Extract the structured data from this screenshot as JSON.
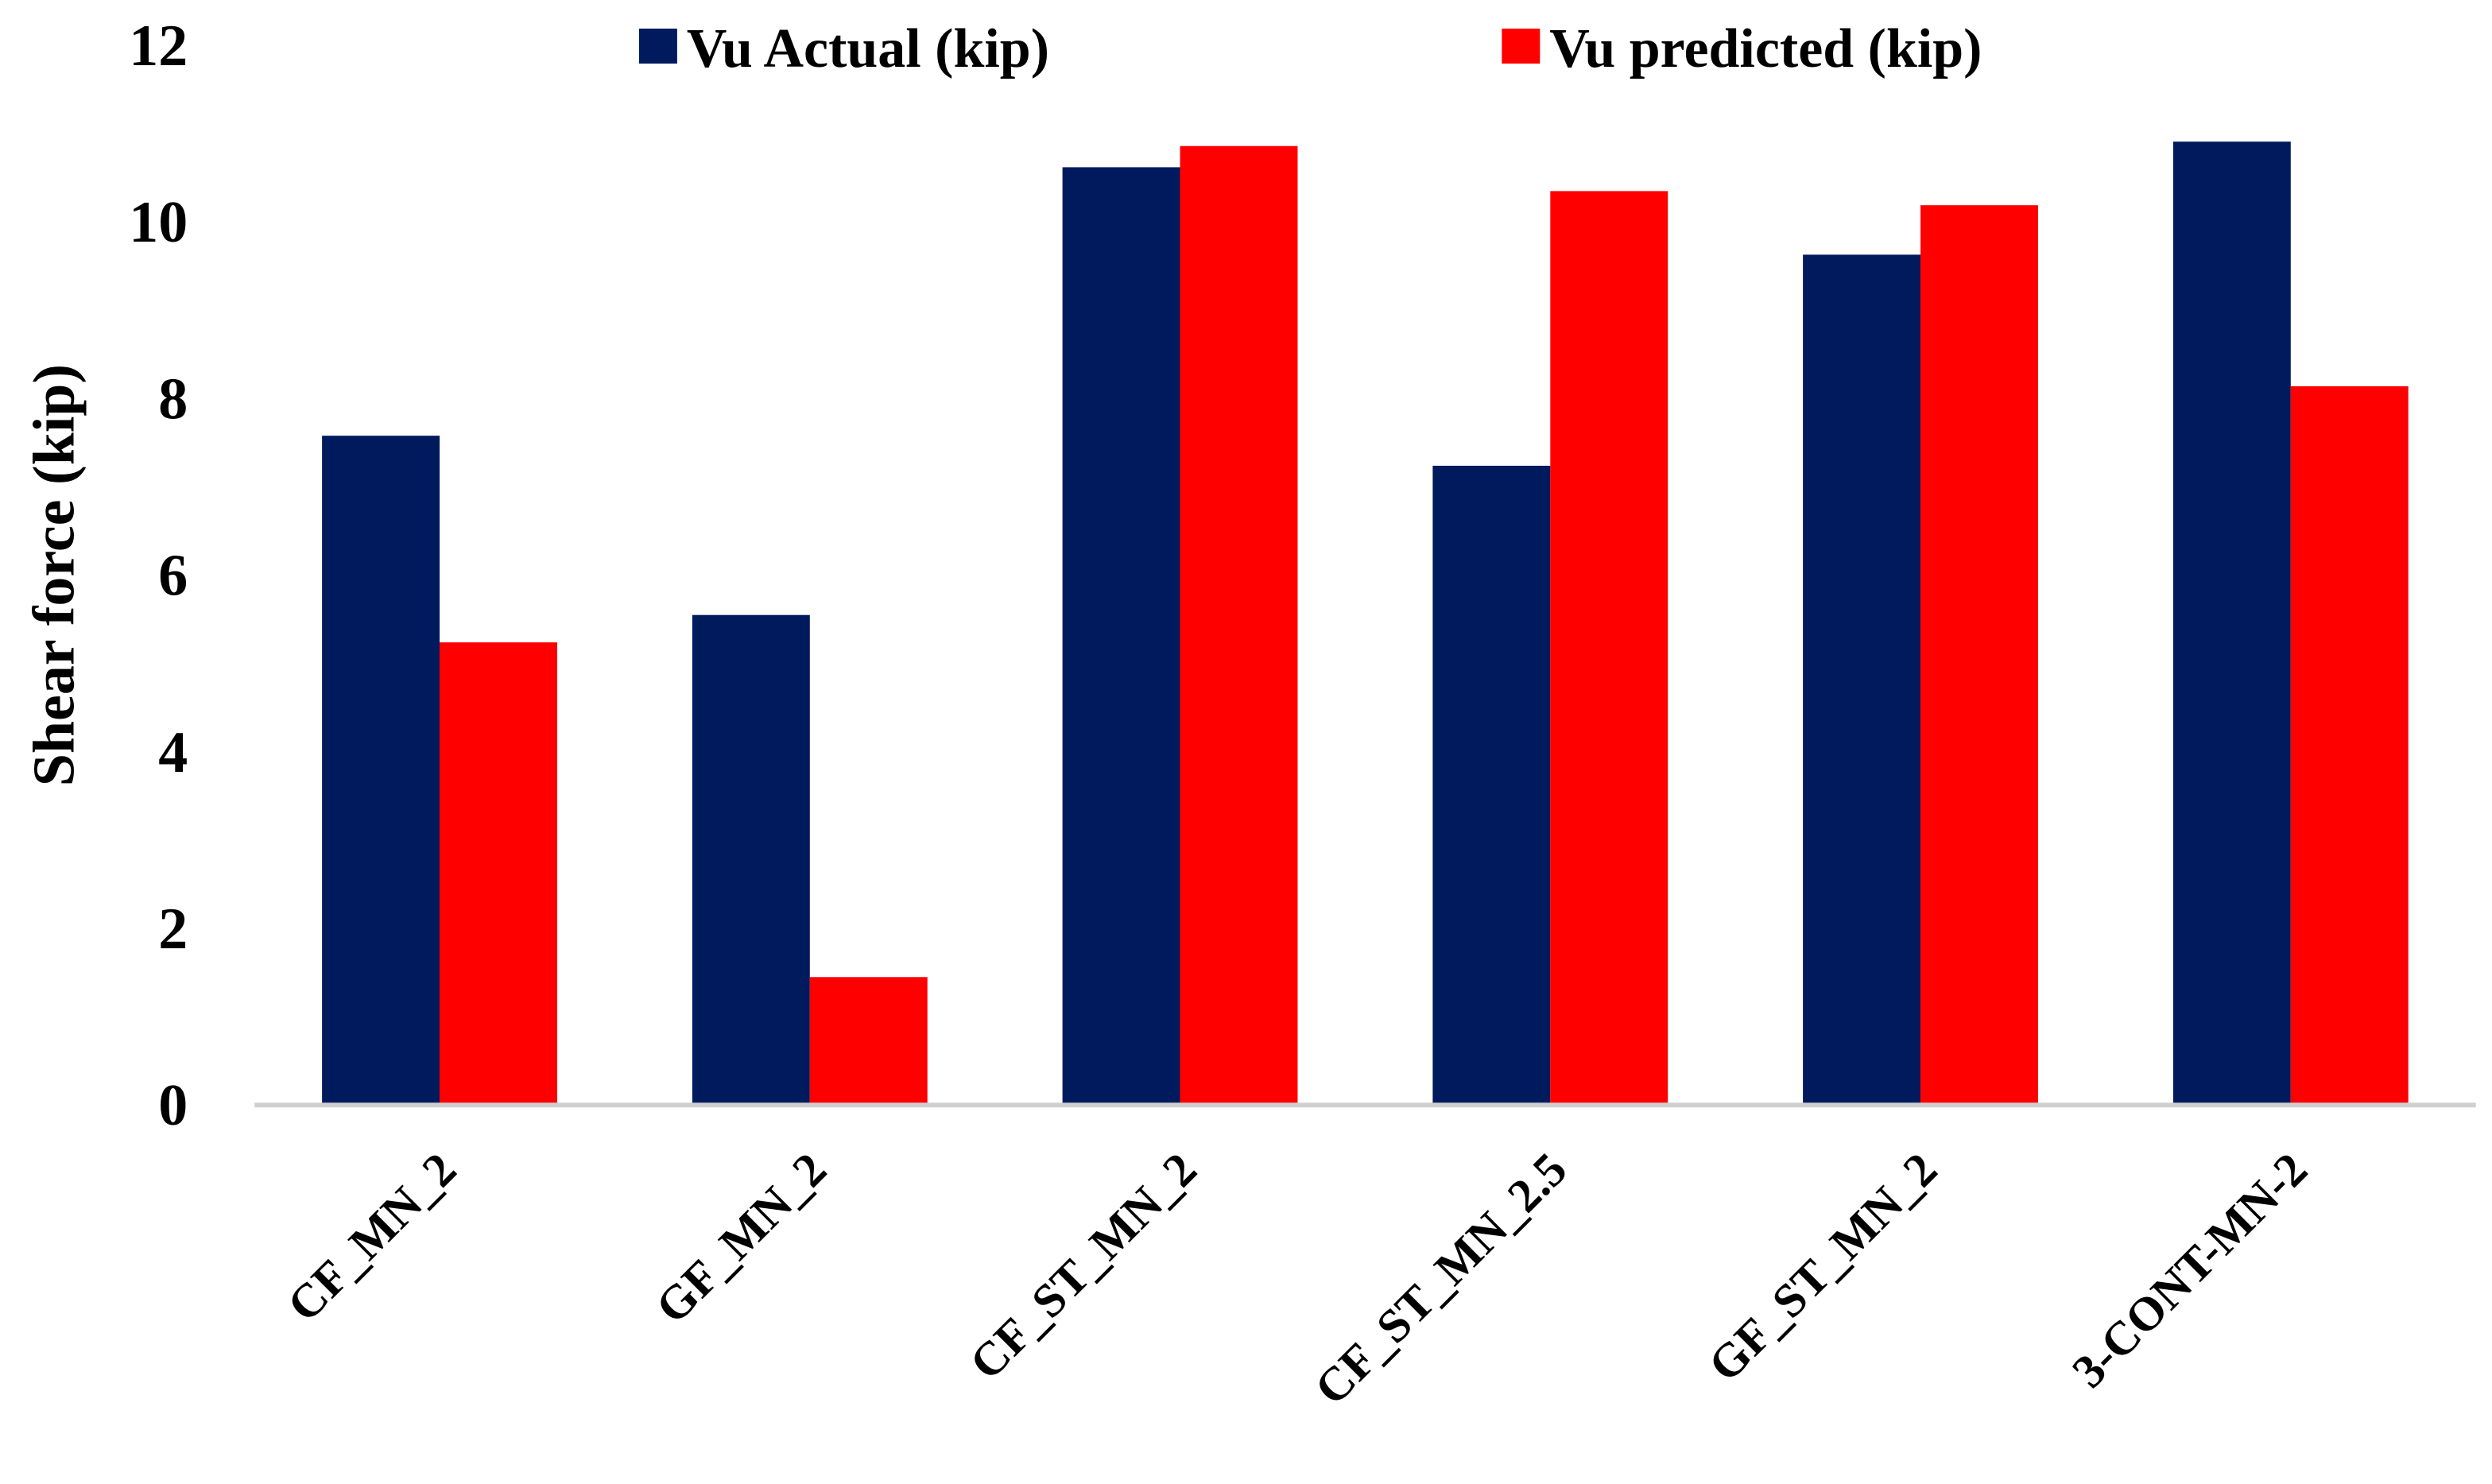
{
  "chart_data": {
    "type": "bar",
    "title": "",
    "xlabel": "",
    "ylabel": "Shear force (kip)",
    "ylim": [
      0,
      12
    ],
    "yticks": [
      "0",
      "2",
      "4",
      "6",
      "8",
      "10",
      "12"
    ],
    "grid": false,
    "legend_position": "top",
    "categories": [
      "CF_MN_2",
      "GF_MN_2",
      "CF_ST_MN_2",
      "CF_ST_MN_2.5",
      "GF_ST_MN_2",
      "3-CONT-MN-2"
    ],
    "series": [
      {
        "name": "Vu Actual (kip)",
        "color": "#001a5e",
        "values": [
          7.57,
          5.54,
          10.61,
          7.23,
          9.62,
          10.9
        ]
      },
      {
        "name": "Vu predicted (kip)",
        "color": "#ff0000",
        "values": [
          5.23,
          1.44,
          10.85,
          10.34,
          10.18,
          8.13
        ]
      }
    ]
  }
}
